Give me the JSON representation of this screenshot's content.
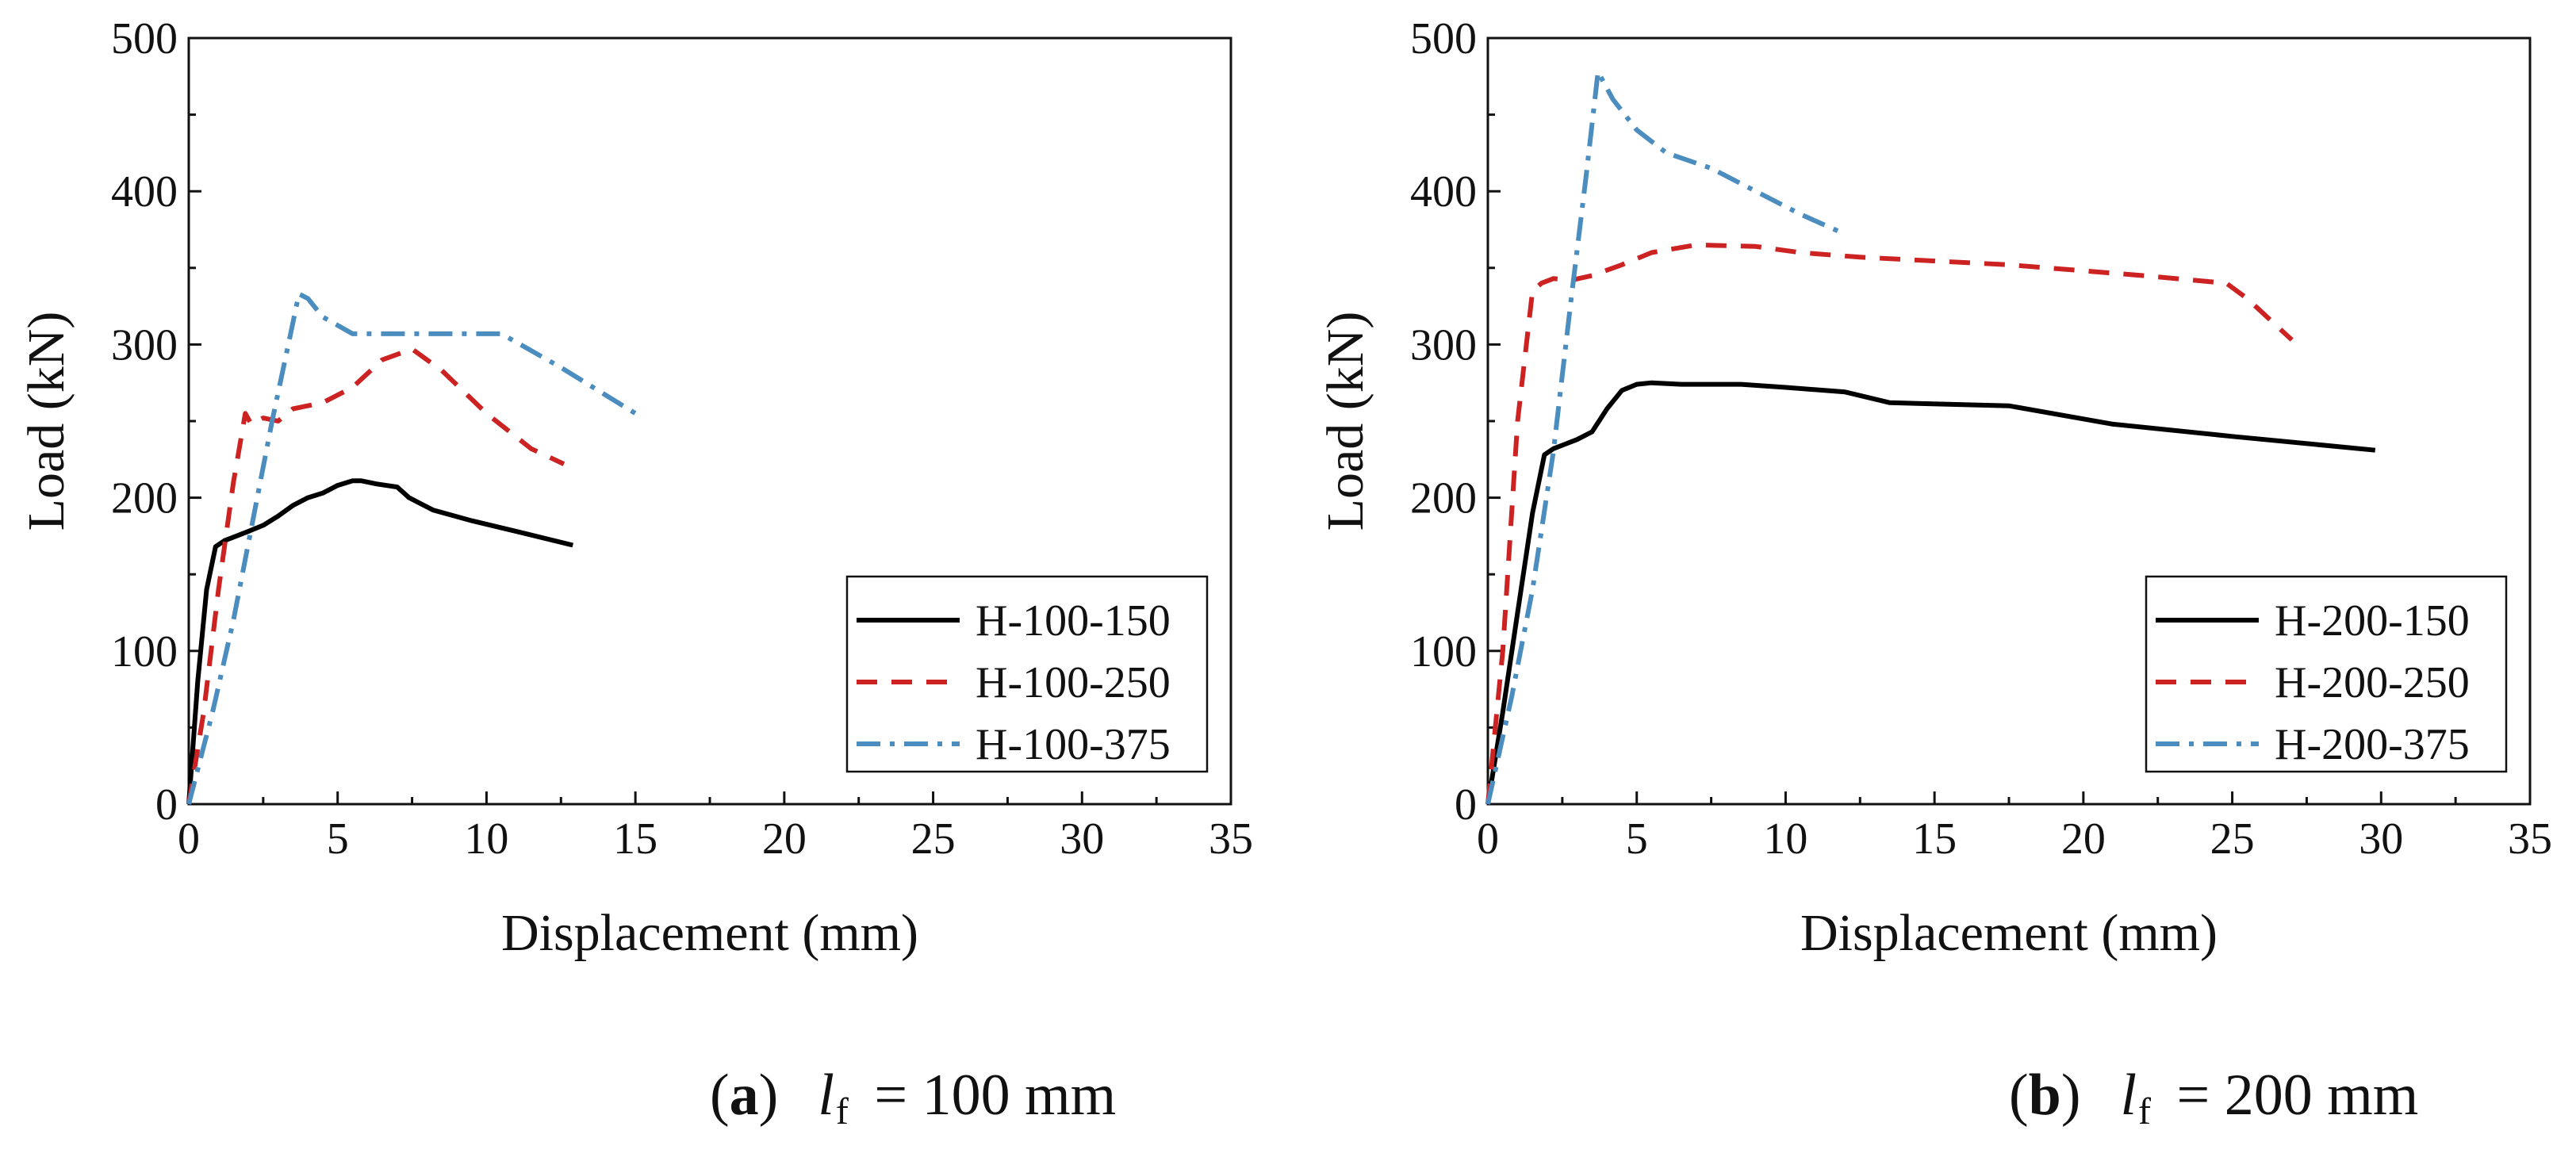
{
  "chart_data": [
    {
      "type": "line",
      "panel_label": "a",
      "caption_var": "l",
      "caption_sub": "f",
      "caption_rest": " = 100 mm",
      "xlabel": "Displacement (mm)",
      "ylabel": "Load (kN)",
      "xlim": [
        0,
        35
      ],
      "ylim": [
        0,
        500
      ],
      "xticks": [
        "0",
        "5",
        "10",
        "15",
        "20",
        "25",
        "30",
        "35"
      ],
      "yticks": [
        "0",
        "100",
        "200",
        "300",
        "400",
        "500"
      ],
      "grid": false,
      "legend_position": "bottom-right",
      "series": [
        {
          "name": "H-100-150",
          "color": "#000000",
          "dash": "solid",
          "x": [
            0,
            0.3,
            0.6,
            0.9,
            1.2,
            1.6,
            2.0,
            2.5,
            3.0,
            3.5,
            4.0,
            4.5,
            5.0,
            5.5,
            5.8,
            6.3,
            7.0,
            7.4,
            8.2,
            9.5,
            11.0,
            12.9
          ],
          "y": [
            0,
            80,
            140,
            168,
            172,
            175,
            178,
            182,
            188,
            195,
            200,
            203,
            208,
            211,
            211,
            209,
            207,
            200,
            192,
            185,
            178,
            169
          ]
        },
        {
          "name": "H-100-250",
          "color": "#cc2222",
          "dash": "dash",
          "x": [
            0,
            0.5,
            1.0,
            1.5,
            1.9,
            2.1,
            2.5,
            3.0,
            3.5,
            4.5,
            5.5,
            6.5,
            7.5,
            8.5,
            10.0,
            11.5,
            12.6
          ],
          "y": [
            0,
            60,
            140,
            210,
            255,
            248,
            252,
            250,
            258,
            262,
            272,
            290,
            297,
            283,
            255,
            232,
            222
          ]
        },
        {
          "name": "H-100-375",
          "color": "#4b8dbf",
          "dash": "dashdot",
          "x": [
            0,
            0.8,
            1.5,
            2.2,
            2.8,
            3.4,
            3.7,
            4.0,
            4.5,
            5.5,
            7.0,
            9.0,
            10.5,
            12.5,
            15.0
          ],
          "y": [
            0,
            60,
            120,
            190,
            250,
            305,
            333,
            330,
            318,
            307,
            307,
            307,
            307,
            285,
            255
          ]
        }
      ]
    },
    {
      "type": "line",
      "panel_label": "b",
      "caption_var": "l",
      "caption_sub": "f",
      "caption_rest": " = 200 mm",
      "xlabel": "Displacement (mm)",
      "ylabel": "Load (kN)",
      "xlim": [
        0,
        35
      ],
      "ylim": [
        0,
        500
      ],
      "xticks": [
        "0",
        "5",
        "10",
        "15",
        "20",
        "25",
        "30",
        "35"
      ],
      "yticks": [
        "0",
        "100",
        "200",
        "300",
        "400",
        "500"
      ],
      "grid": false,
      "legend_position": "bottom-right",
      "series": [
        {
          "name": "H-200-150",
          "color": "#000000",
          "dash": "solid",
          "x": [
            0,
            0.5,
            1.0,
            1.5,
            1.9,
            2.2,
            2.6,
            3.0,
            3.5,
            4.0,
            4.5,
            5.0,
            5.5,
            6.5,
            8.5,
            10.0,
            12.0,
            13.5,
            17.5,
            21.0,
            25.0,
            29.8
          ],
          "y": [
            0,
            60,
            125,
            190,
            228,
            232,
            235,
            238,
            243,
            258,
            270,
            274,
            275,
            274,
            274,
            272,
            269,
            262,
            260,
            248,
            240,
            231
          ]
        },
        {
          "name": "H-200-250",
          "color": "#cc2222",
          "dash": "dash",
          "x": [
            0,
            0.5,
            1.0,
            1.5,
            1.8,
            2.2,
            2.8,
            3.5,
            4.5,
            5.5,
            7.0,
            9.0,
            10.5,
            12.5,
            17.5,
            22.0,
            24.8,
            25.5,
            27.0
          ],
          "y": [
            0,
            100,
            250,
            335,
            340,
            343,
            342,
            345,
            352,
            360,
            365,
            364,
            360,
            357,
            352,
            345,
            340,
            330,
            303
          ]
        },
        {
          "name": "H-200-375",
          "color": "#4b8dbf",
          "dash": "dashdot",
          "x": [
            0,
            0.8,
            1.5,
            2.2,
            2.8,
            3.3,
            3.7,
            4.2,
            5.0,
            6.0,
            7.5,
            9.0,
            10.5,
            12.0
          ],
          "y": [
            0,
            70,
            140,
            230,
            330,
            410,
            478,
            460,
            440,
            425,
            415,
            400,
            385,
            372
          ]
        }
      ]
    }
  ]
}
